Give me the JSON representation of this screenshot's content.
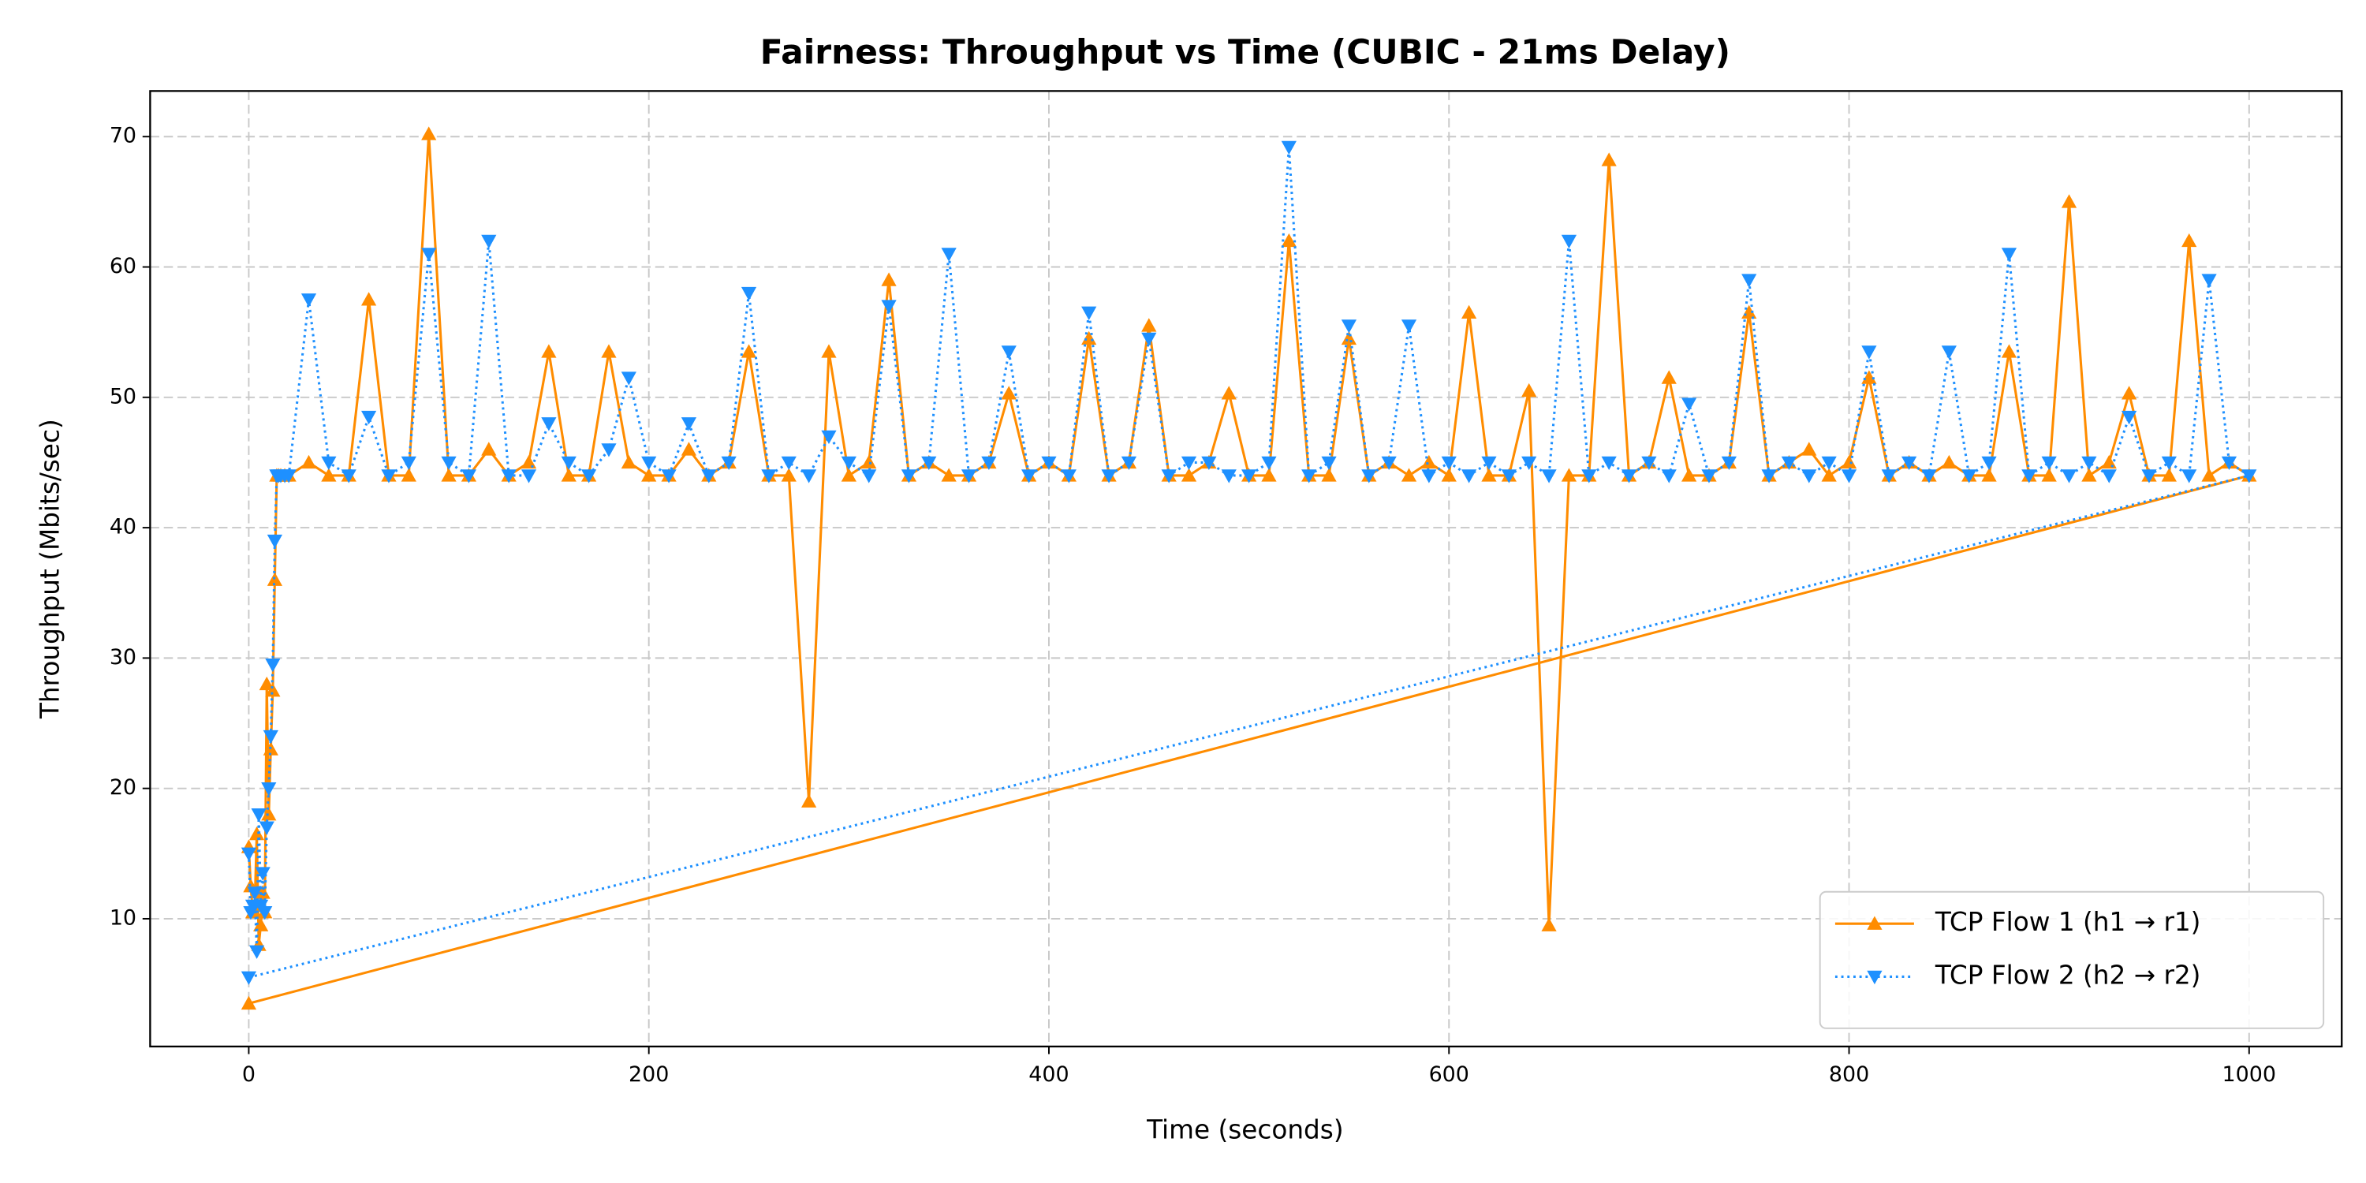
{
  "chart_data": {
    "type": "line",
    "title": "Fairness: Throughput vs Time (CUBIC - 21ms Delay)",
    "x_label": "Time (seconds)",
    "y_label": "Throughput (Mbits/sec)",
    "x": [
      0,
      1,
      2,
      3,
      4,
      5,
      6,
      7,
      8,
      9,
      10,
      11,
      12,
      13,
      14,
      15,
      16,
      18,
      20,
      30,
      40,
      50,
      60,
      70,
      80,
      90,
      100,
      110,
      120,
      130,
      140,
      150,
      160,
      170,
      180,
      190,
      200,
      210,
      220,
      230,
      240,
      250,
      260,
      270,
      280,
      290,
      300,
      310,
      320,
      330,
      340,
      350,
      360,
      370,
      380,
      390,
      400,
      410,
      420,
      430,
      440,
      450,
      460,
      470,
      480,
      490,
      500,
      510,
      520,
      530,
      540,
      550,
      560,
      570,
      580,
      590,
      600,
      610,
      620,
      630,
      640,
      650,
      660,
      670,
      680,
      690,
      700,
      710,
      720,
      730,
      740,
      750,
      760,
      770,
      780,
      790,
      800,
      810,
      820,
      830,
      840,
      850,
      860,
      870,
      880,
      890,
      900,
      910,
      920,
      930,
      940,
      950,
      960,
      970,
      980,
      990,
      1000,
      0
    ],
    "series": [
      {
        "name": "TCP Flow 1 (h1 → r1)",
        "color": "#ff8c00",
        "linestyle": "solid",
        "marker": "triangle-up",
        "values": [
          15.5,
          12.5,
          10.5,
          11,
          16.5,
          8,
          9.5,
          12,
          10.5,
          28,
          18,
          23,
          27.5,
          36,
          44,
          44,
          44,
          44,
          44,
          45,
          44,
          44,
          57.5,
          44,
          44,
          70.2,
          44,
          44,
          46,
          44,
          45,
          53.5,
          44,
          44,
          53.5,
          45,
          44,
          44,
          46,
          44,
          45,
          53.5,
          44,
          44,
          19,
          53.5,
          44,
          45,
          59,
          44,
          45,
          44,
          44,
          45,
          50.3,
          44,
          45,
          44,
          54.5,
          44,
          45,
          55.5,
          44,
          44,
          45,
          50.3,
          44,
          44,
          62,
          44,
          44,
          54.5,
          44,
          45,
          44,
          45,
          44,
          56.5,
          44,
          44,
          50.5,
          9.5,
          44,
          44,
          68.2,
          44,
          45,
          51.5,
          44,
          44,
          45,
          56.5,
          44,
          45,
          46,
          44,
          45,
          51.5,
          44,
          45,
          44,
          45,
          44,
          44,
          53.5,
          44,
          44,
          65,
          44,
          45,
          50.3,
          44,
          44,
          62,
          44,
          45,
          44,
          3.5
        ]
      },
      {
        "name": "TCP Flow 2 (h2 → r2)",
        "color": "#1e90ff",
        "linestyle": "dotted",
        "marker": "triangle-down",
        "values": [
          15,
          10.5,
          11,
          12,
          7.5,
          18,
          11,
          13.5,
          10.5,
          17,
          20,
          24,
          29.5,
          39,
          44,
          44,
          44,
          44,
          44,
          57.5,
          45,
          44,
          48.5,
          44,
          45,
          61,
          45,
          44,
          62,
          44,
          44,
          48,
          45,
          44,
          46,
          51.5,
          45,
          44,
          48,
          44,
          45,
          58,
          44,
          45,
          44,
          47,
          45,
          44,
          57,
          44,
          45,
          61,
          44,
          45,
          53.5,
          44,
          45,
          44,
          56.5,
          44,
          45,
          54.5,
          44,
          45,
          45,
          44,
          44,
          45,
          69.2,
          44,
          45,
          55.5,
          44,
          45,
          55.5,
          44,
          45,
          44,
          45,
          44,
          45,
          44,
          62,
          44,
          45,
          44,
          45,
          44,
          49.5,
          44,
          45,
          59,
          44,
          45,
          44,
          45,
          44,
          53.5,
          44,
          45,
          44,
          53.5,
          44,
          45,
          61,
          44,
          45,
          44,
          45,
          44,
          48.5,
          44,
          45,
          44,
          59,
          45,
          44,
          5.5
        ]
      }
    ],
    "xlim": [
      -49.3,
      1046.3
    ],
    "ylim": [
      0.2,
      73.5
    ],
    "xticks": [
      0,
      200,
      400,
      600,
      800,
      1000
    ],
    "yticks": [
      10,
      20,
      30,
      40,
      50,
      60,
      70
    ],
    "grid": true,
    "legend": "lower right"
  }
}
